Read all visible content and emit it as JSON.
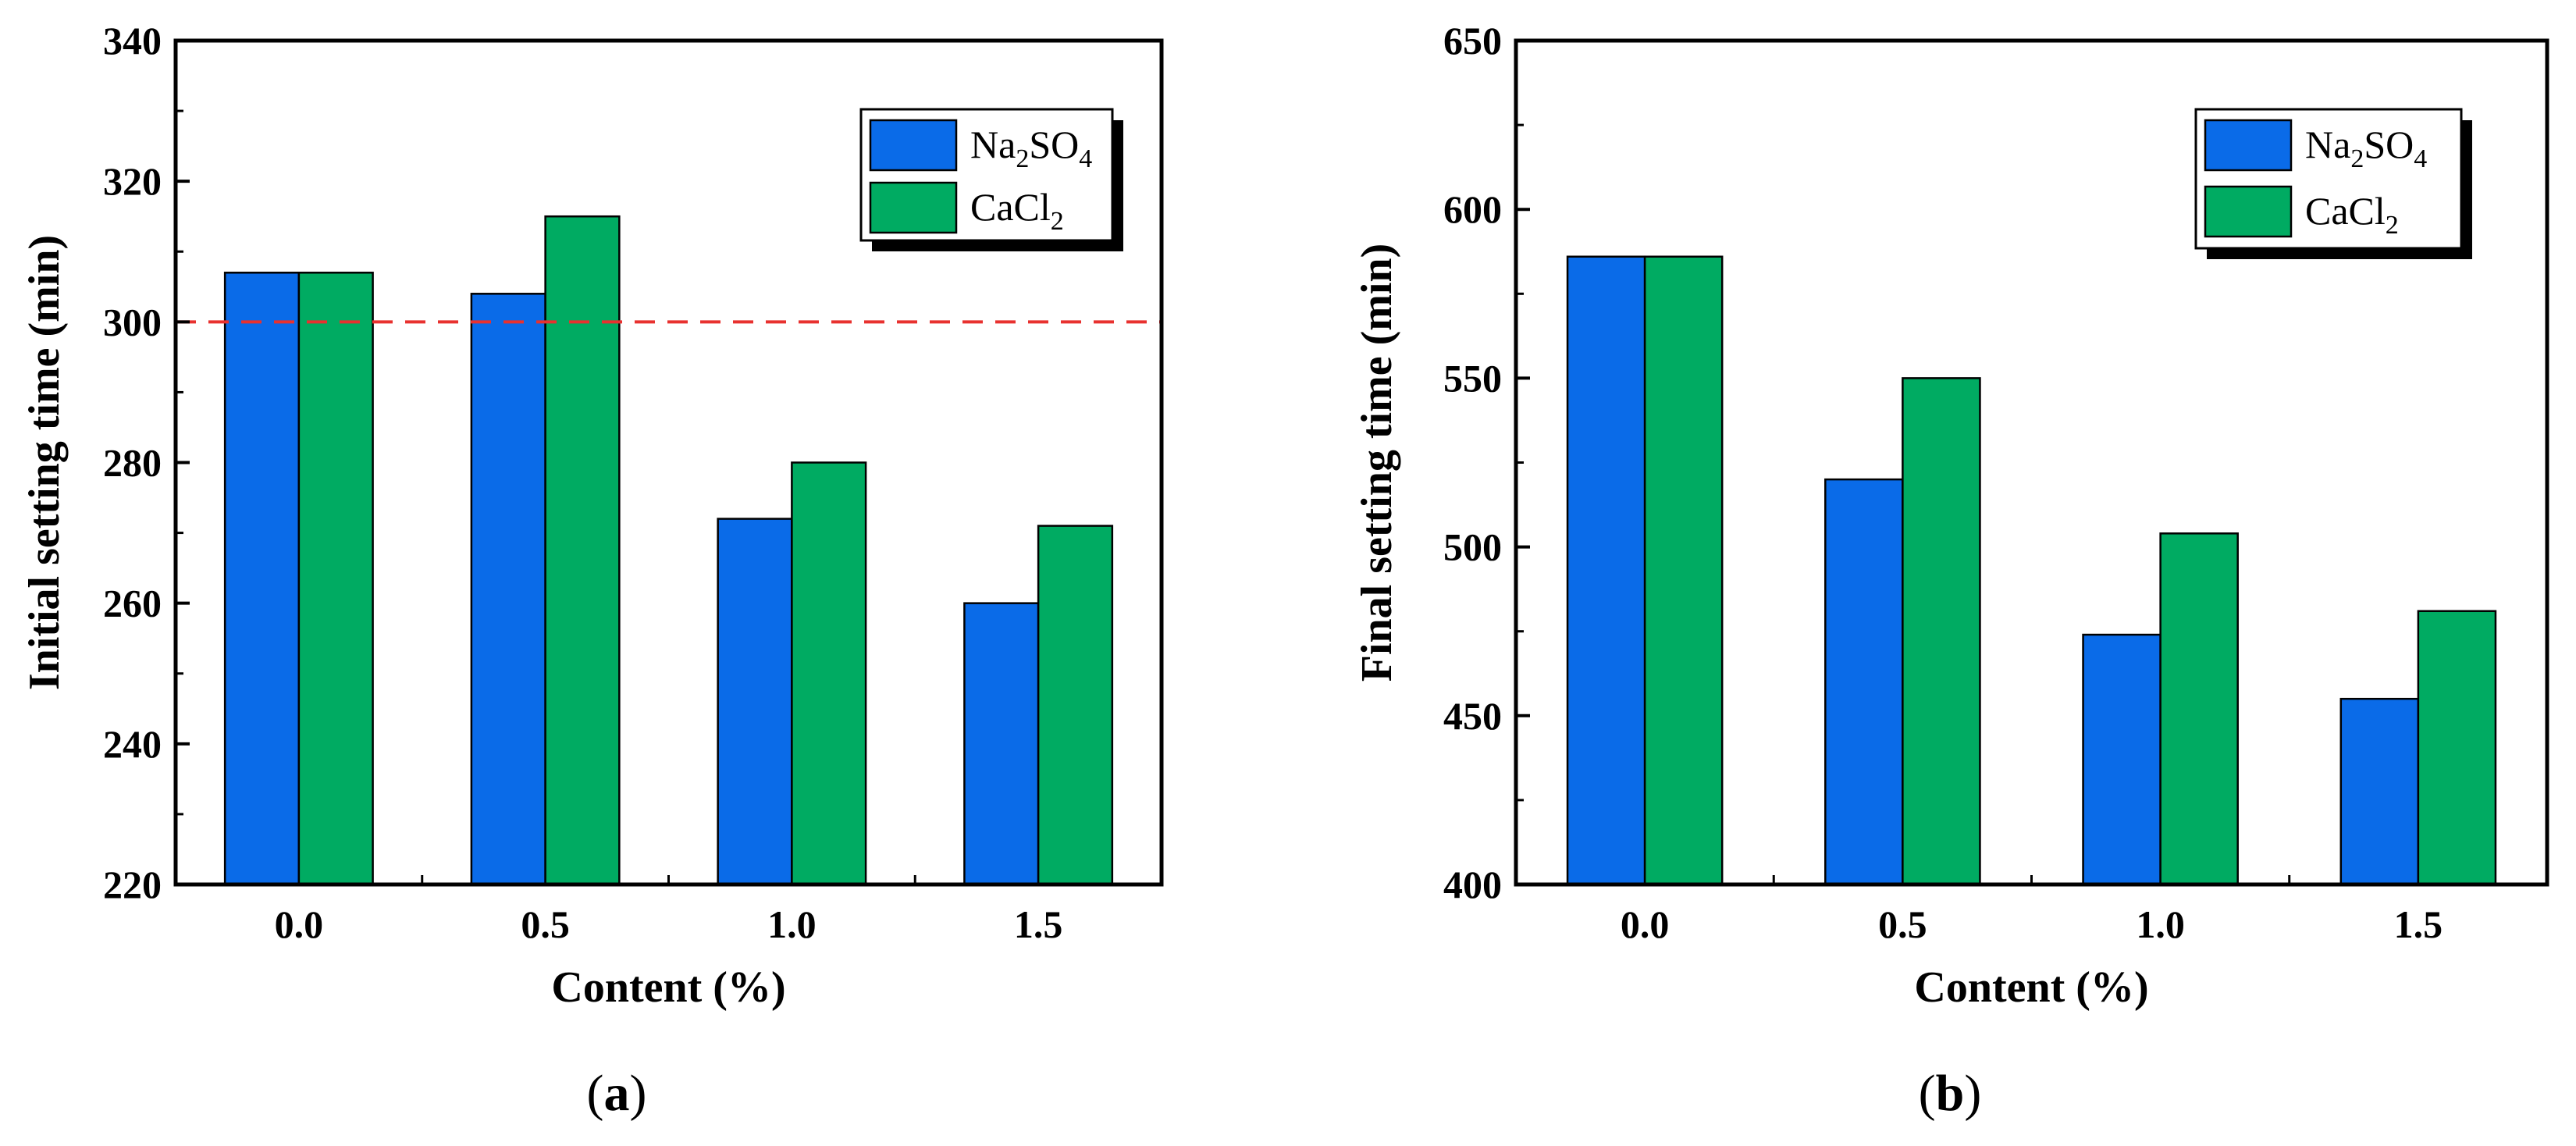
{
  "chart_data": [
    {
      "type": "bar",
      "panel_label": {
        "open": "(",
        "letter": "a",
        "close": ")"
      },
      "categories": [
        "0.0",
        "0.5",
        "1.0",
        "1.5"
      ],
      "series": [
        {
          "name": "Na2SO4",
          "label_main": "Na",
          "label_sub1": "2",
          "label_mid": "SO",
          "label_sub2": "4",
          "color": "#0a6be8",
          "values": [
            307,
            304,
            272,
            260
          ]
        },
        {
          "name": "CaCl2",
          "label_main": "CaCl",
          "label_sub1": "2",
          "label_mid": "",
          "label_sub2": "",
          "color": "#00ab62",
          "values": [
            307,
            315,
            280,
            271
          ]
        }
      ],
      "xlabel": "Content (%)",
      "ylabel": "Initial setting time (min)",
      "ylim": [
        220,
        340
      ],
      "yticks": [
        220,
        240,
        260,
        280,
        300,
        320,
        340
      ],
      "reference_line": {
        "value": 300,
        "color": "#e8312f",
        "style": "dashed"
      },
      "legend_position": "top-right"
    },
    {
      "type": "bar",
      "panel_label": {
        "open": "(",
        "letter": "b",
        "close": ")"
      },
      "categories": [
        "0.0",
        "0.5",
        "1.0",
        "1.5"
      ],
      "series": [
        {
          "name": "Na2SO4",
          "label_main": "Na",
          "label_sub1": "2",
          "label_mid": "SO",
          "label_sub2": "4",
          "color": "#0a6be8",
          "values": [
            586,
            520,
            474,
            455
          ]
        },
        {
          "name": "CaCl2",
          "label_main": "CaCl",
          "label_sub1": "2",
          "label_mid": "",
          "label_sub2": "",
          "color": "#00ab62",
          "values": [
            586,
            550,
            504,
            481
          ]
        }
      ],
      "xlabel": "Content (%)",
      "ylabel": "Final setting time (min)",
      "ylim": [
        400,
        650
      ],
      "yticks": [
        400,
        450,
        500,
        550,
        600,
        650
      ],
      "legend_position": "top-right"
    }
  ]
}
